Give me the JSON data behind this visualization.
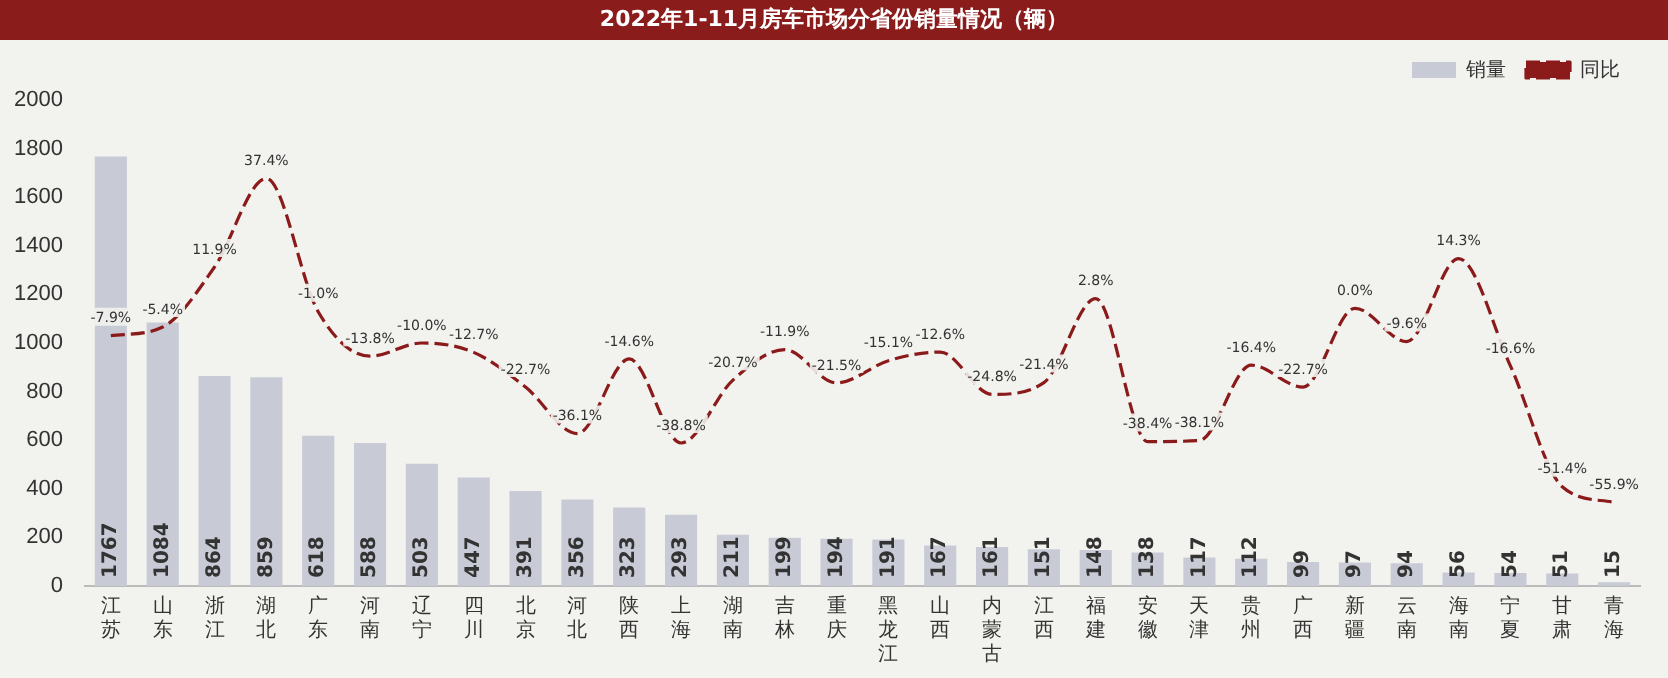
{
  "chart_data": {
    "type": "bar",
    "title": "2022年1-11月房车市场分省份销量情况（辆）",
    "categories": [
      "江苏",
      "山东",
      "浙江",
      "湖北",
      "广东",
      "河南",
      "辽宁",
      "四川",
      "北京",
      "河北",
      "陕西",
      "上海",
      "湖南",
      "吉林",
      "重庆",
      "黑龙江",
      "山西",
      "内蒙古",
      "江西",
      "福建",
      "安徽",
      "天津",
      "贵州",
      "广西",
      "新疆",
      "云南",
      "海南",
      "宁夏",
      "甘肃",
      "青海"
    ],
    "series": [
      {
        "name": "销量",
        "color": "#c8cbd6",
        "values": [
          1767,
          1084,
          864,
          859,
          618,
          588,
          503,
          447,
          391,
          356,
          323,
          293,
          211,
          199,
          194,
          191,
          167,
          161,
          151,
          148,
          138,
          117,
          112,
          99,
          97,
          94,
          56,
          54,
          51,
          15
        ],
        "value_labels": [
          "1767",
          "1084",
          "864",
          "859",
          "618",
          "588",
          "503",
          "447",
          "391",
          "356",
          "323",
          "293",
          "211",
          "199",
          "194",
          "191",
          "167",
          "161",
          "151",
          "148",
          "138",
          "117",
          "112",
          "99",
          "97",
          "94",
          "56",
          "54",
          "51",
          "15"
        ]
      },
      {
        "name": "同比",
        "type": "line",
        "axis": "y2",
        "color": "#8b1a1a",
        "line_style": "dashed",
        "values": [
          -7.9,
          -5.4,
          11.9,
          37.4,
          -1.0,
          -13.8,
          -10.0,
          -12.7,
          -22.7,
          -36.1,
          -14.6,
          -38.8,
          -20.7,
          -11.9,
          -21.5,
          -15.1,
          -12.6,
          -24.8,
          -21.4,
          2.8,
          -38.4,
          -38.1,
          -16.4,
          -22.7,
          0.0,
          -9.6,
          14.3,
          -16.6,
          -51.4,
          -55.9
        ],
        "value_labels": [
          "-7.9%",
          "-5.4%",
          "11.9%",
          "37.4%",
          "-1.0%",
          "-13.8%",
          "-10.0%",
          "-12.7%",
          "-22.7%",
          "-36.1%",
          "-14.6%",
          "-38.8%",
          "-20.7%",
          "-11.9%",
          "-21.5%",
          "-15.1%",
          "-12.6%",
          "-24.8%",
          "-21.4%",
          "2.8%",
          "-38.4%",
          "-38.1%",
          "-16.4%",
          "-22.7%",
          "0.0%",
          "-9.6%",
          "14.3%",
          "-16.6%",
          "-51.4%",
          "-55.9%"
        ]
      }
    ],
    "ylim": [
      0,
      2000
    ],
    "yticks": [
      0,
      200,
      400,
      600,
      800,
      1000,
      1200,
      1400,
      1600,
      1800,
      2000
    ],
    "tick_labels": "y",
    "grid": false,
    "legend": "top right",
    "marker": "none"
  }
}
